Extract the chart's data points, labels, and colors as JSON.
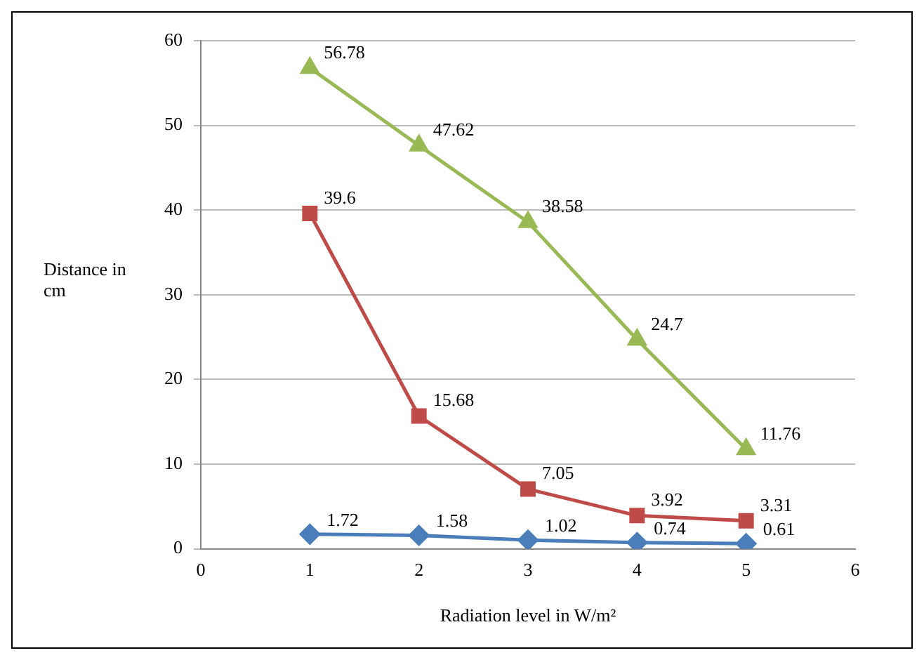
{
  "chart_data": {
    "type": "line",
    "xlabel": "Radiation level in W/m²",
    "ylabel": "Distance in cm",
    "x": [
      1,
      2,
      3,
      4,
      5
    ],
    "series": [
      {
        "color": "#4a7ebb",
        "marker": "diamond",
        "values": [
          1.72,
          1.58,
          1.02,
          0.74,
          0.61
        ]
      },
      {
        "color": "#be4b48",
        "marker": "square",
        "values": [
          39.6,
          15.68,
          7.05,
          3.92,
          3.31
        ]
      },
      {
        "color": "#98b954",
        "marker": "triangle",
        "values": [
          56.78,
          47.62,
          38.58,
          24.7,
          11.76
        ]
      }
    ],
    "xlim": [
      0,
      6
    ],
    "xticks": [
      0,
      1,
      2,
      3,
      4,
      5,
      6
    ],
    "ylim": [
      0,
      60
    ],
    "yticks": [
      0,
      10,
      20,
      30,
      40,
      50,
      60
    ],
    "grid": "y",
    "data_labels": true,
    "legend": false
  }
}
